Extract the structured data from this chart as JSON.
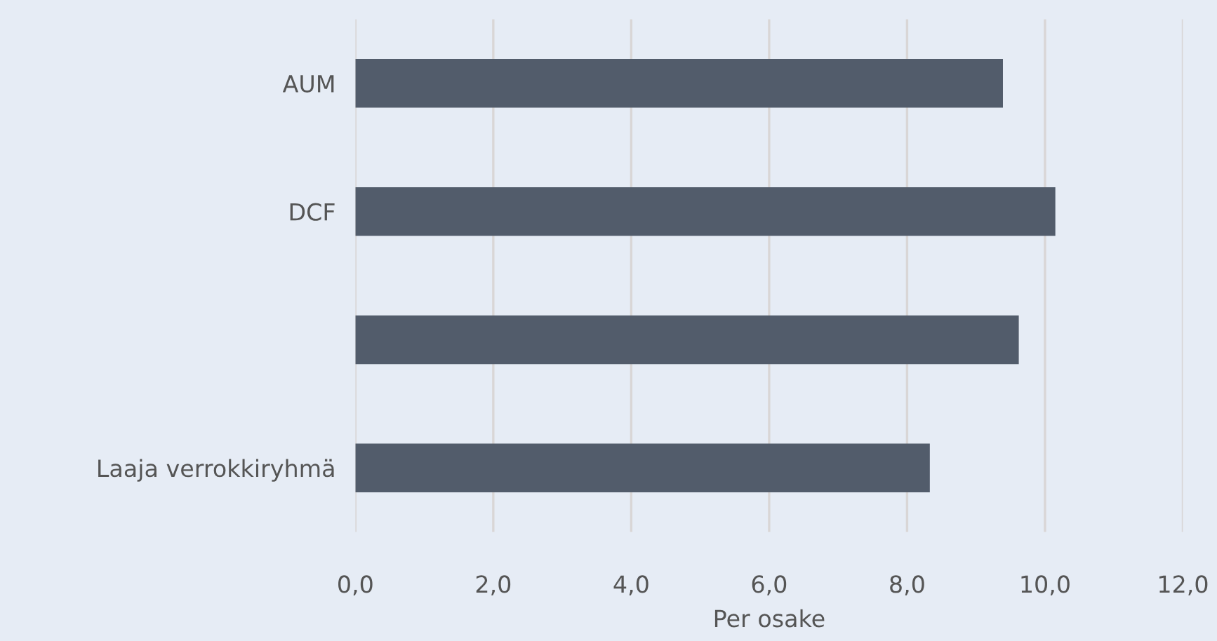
{
  "chart_data": {
    "type": "bar",
    "orientation": "horizontal",
    "xlabel": "Per osake",
    "categories": [
      "AUM",
      "DCF",
      null,
      "Laaja verrokkiryhmä"
    ],
    "values": [
      9.39,
      10.15,
      9.62,
      8.33
    ],
    "color": "#525c6b",
    "xlim": [
      0,
      12
    ],
    "xticks": [
      {
        "value": 0,
        "label": "0,0"
      },
      {
        "value": 2,
        "label": "2,0"
      },
      {
        "value": 4,
        "label": "4,0"
      },
      {
        "value": 6,
        "label": "6,0"
      },
      {
        "value": 8,
        "label": "8,0"
      },
      {
        "value": 10,
        "label": "10,0"
      },
      {
        "value": 12,
        "label": "12,0"
      }
    ],
    "grid": "x",
    "legend": false
  }
}
